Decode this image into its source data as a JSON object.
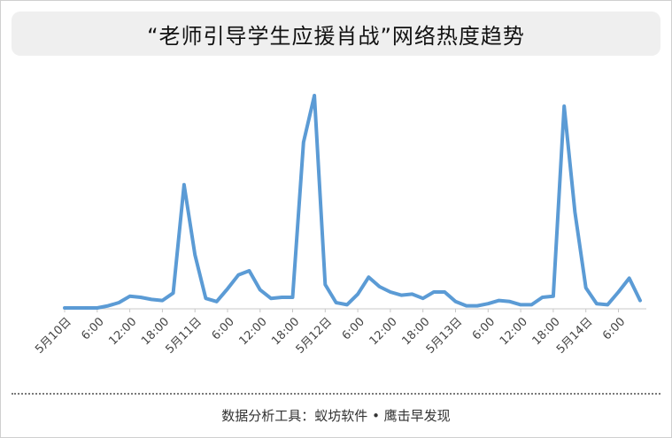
{
  "chart_data": {
    "type": "line",
    "title": "“老师引导学生应援肖战”网络热度趋势",
    "xlabel": "",
    "ylabel": "",
    "ylim": [
      0,
      100
    ],
    "grid": false,
    "legend": "none",
    "line_color": "#5b9bd5",
    "x_tick_labels": [
      "5月10日",
      "6:00",
      "12:00",
      "18:00",
      "5月11日",
      "6:00",
      "12:00",
      "18:00",
      "5月12日",
      "6:00",
      "12:00",
      "18:00",
      "5月13日",
      "6:00",
      "12:00",
      "18:00",
      "5月14日",
      "6:00"
    ],
    "series": [
      {
        "values": [
          0,
          0,
          0,
          0,
          1,
          2.5,
          5.5,
          5,
          4,
          3.5,
          7,
          58,
          25,
          4.5,
          3,
          9,
          15.5,
          17.5,
          8.5,
          4.5,
          5,
          5,
          78,
          100,
          11,
          2.5,
          1.5,
          6.5,
          14.5,
          10,
          7.5,
          6,
          6.5,
          4.5,
          7.5,
          7.5,
          3,
          1,
          1,
          2,
          3.5,
          3,
          1.5,
          1.5,
          5,
          5.5,
          95,
          45,
          9.5,
          2,
          1.5,
          7.5,
          14,
          3.5
        ]
      }
    ]
  },
  "footer": {
    "text": "数据分析工具：蚁坊软件 • 鹰击早发现"
  }
}
